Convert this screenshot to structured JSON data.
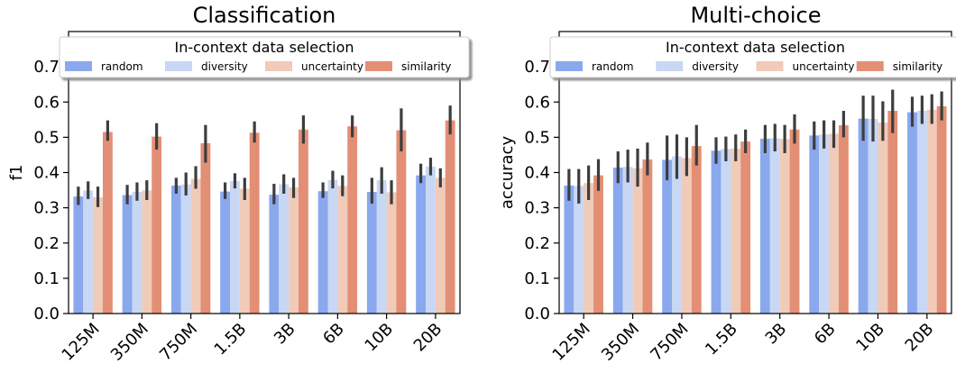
{
  "chart_data": [
    {
      "type": "bar",
      "title": "Classification",
      "xlabel": "",
      "ylabel": "f1",
      "ylim": [
        0,
        0.8
      ],
      "yticks": [
        "0.0",
        "0.1",
        "0.2",
        "0.3",
        "0.4",
        "0.5",
        "0.6",
        "0.7"
      ],
      "grid": false,
      "legend": {
        "title": "In-context data selection",
        "placement": "top"
      },
      "categories": [
        "125M",
        "350M",
        "750M",
        "1.5B",
        "3B",
        "6B",
        "10B",
        "20B"
      ],
      "series": [
        {
          "name": "random",
          "color": "#8aa8ee",
          "values": [
            0.332,
            0.336,
            0.363,
            0.346,
            0.337,
            0.347,
            0.345,
            0.392
          ],
          "err_low": [
            0.308,
            0.31,
            0.34,
            0.325,
            0.31,
            0.328,
            0.312,
            0.37
          ],
          "err_high": [
            0.36,
            0.365,
            0.385,
            0.372,
            0.368,
            0.372,
            0.385,
            0.425
          ]
        },
        {
          "name": "diversity",
          "color": "#c8d7f4",
          "values": [
            0.349,
            0.345,
            0.366,
            0.376,
            0.367,
            0.379,
            0.378,
            0.417
          ],
          "err_low": [
            0.325,
            0.32,
            0.335,
            0.355,
            0.34,
            0.355,
            0.34,
            0.392
          ],
          "err_high": [
            0.375,
            0.372,
            0.4,
            0.398,
            0.395,
            0.405,
            0.415,
            0.442
          ]
        },
        {
          "name": "uncertainty",
          "color": "#f0cbb8",
          "values": [
            0.33,
            0.349,
            0.382,
            0.354,
            0.358,
            0.362,
            0.344,
            0.385
          ],
          "err_low": [
            0.302,
            0.322,
            0.354,
            0.322,
            0.328,
            0.333,
            0.31,
            0.358
          ],
          "err_high": [
            0.36,
            0.378,
            0.418,
            0.385,
            0.385,
            0.392,
            0.378,
            0.412
          ]
        },
        {
          "name": "similarity",
          "color": "#e38f75",
          "values": [
            0.515,
            0.502,
            0.483,
            0.513,
            0.522,
            0.531,
            0.52,
            0.548
          ],
          "err_low": [
            0.49,
            0.465,
            0.428,
            0.485,
            0.482,
            0.5,
            0.46,
            0.508
          ],
          "err_high": [
            0.548,
            0.54,
            0.535,
            0.545,
            0.562,
            0.562,
            0.582,
            0.59
          ]
        }
      ]
    },
    {
      "type": "bar",
      "title": "Multi-choice",
      "xlabel": "",
      "ylabel": "accuracy",
      "ylim": [
        0,
        0.8
      ],
      "yticks": [
        "0.0",
        "0.1",
        "0.2",
        "0.3",
        "0.4",
        "0.5",
        "0.6",
        "0.7"
      ],
      "grid": false,
      "legend": {
        "title": "In-context data selection",
        "placement": "top"
      },
      "categories": [
        "125M",
        "350M",
        "750M",
        "1.5B",
        "3B",
        "6B",
        "10B",
        "20B"
      ],
      "series": [
        {
          "name": "random",
          "color": "#8aa8ee",
          "values": [
            0.363,
            0.414,
            0.436,
            0.462,
            0.496,
            0.505,
            0.553,
            0.571
          ],
          "err_low": [
            0.32,
            0.37,
            0.378,
            0.425,
            0.455,
            0.465,
            0.49,
            0.53
          ],
          "err_high": [
            0.41,
            0.46,
            0.505,
            0.5,
            0.535,
            0.545,
            0.618,
            0.615
          ]
        },
        {
          "name": "diversity",
          "color": "#c8d7f4",
          "values": [
            0.362,
            0.416,
            0.446,
            0.467,
            0.497,
            0.508,
            0.552,
            0.575
          ],
          "err_low": [
            0.312,
            0.372,
            0.382,
            0.432,
            0.46,
            0.468,
            0.488,
            0.538
          ],
          "err_high": [
            0.41,
            0.465,
            0.508,
            0.502,
            0.538,
            0.548,
            0.618,
            0.618
          ]
        },
        {
          "name": "uncertainty",
          "color": "#f0cbb8",
          "values": [
            0.37,
            0.412,
            0.441,
            0.468,
            0.495,
            0.51,
            0.542,
            0.578
          ],
          "err_low": [
            0.322,
            0.36,
            0.39,
            0.432,
            0.455,
            0.47,
            0.49,
            0.538
          ],
          "err_high": [
            0.42,
            0.468,
            0.5,
            0.508,
            0.535,
            0.548,
            0.602,
            0.622
          ]
        },
        {
          "name": "similarity",
          "color": "#e38f75",
          "values": [
            0.392,
            0.437,
            0.475,
            0.488,
            0.522,
            0.534,
            0.575,
            0.588
          ],
          "err_low": [
            0.348,
            0.392,
            0.42,
            0.455,
            0.482,
            0.5,
            0.512,
            0.548
          ],
          "err_high": [
            0.438,
            0.485,
            0.535,
            0.522,
            0.565,
            0.575,
            0.635,
            0.63
          ]
        }
      ]
    }
  ]
}
